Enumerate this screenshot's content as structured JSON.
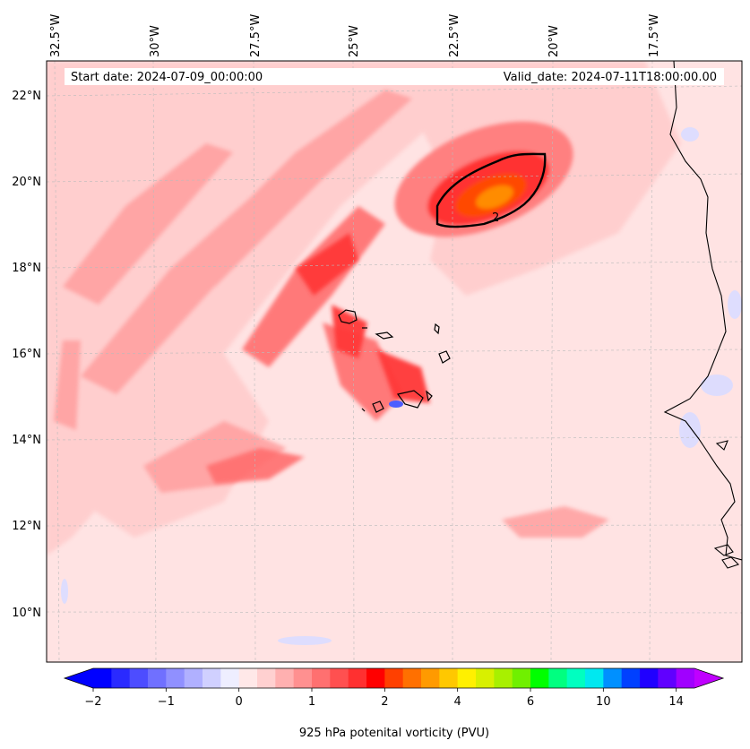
{
  "header": {
    "start_date": "Start date: 2024-07-09_00:00:00",
    "valid_date": "Valid_date: 2024-07-11T18:00:00.00"
  },
  "axes": {
    "longitude_labels": [
      "32.5°W",
      "30°W",
      "27.5°W",
      "25°W",
      "22.5°W",
      "20°W",
      "17.5°W"
    ],
    "latitude_labels": [
      "22°N",
      "20°N",
      "18°N",
      "16°N",
      "14°N",
      "12°N",
      "10°N"
    ]
  },
  "contour": {
    "label": "2"
  },
  "colorbar": {
    "title": "925 hPa potenital vorticity (PVU)",
    "tick_labels": [
      "−2",
      "−1",
      "0",
      "1",
      "2",
      "4",
      "6",
      "10",
      "14"
    ],
    "colors": [
      "#0000ff",
      "#2a2aff",
      "#4d4dff",
      "#7070ff",
      "#9090ff",
      "#b0b0ff",
      "#d0d0ff",
      "#eeeeff",
      "#ffe8e8",
      "#ffd0d0",
      "#ffb0b0",
      "#ff9090",
      "#ff7070",
      "#ff5050",
      "#ff3030",
      "#ff0000",
      "#ff4000",
      "#ff7000",
      "#ff9a00",
      "#ffc800",
      "#fff000",
      "#d8f000",
      "#a8f000",
      "#70f000",
      "#00ff00",
      "#00ff80",
      "#00ffc0",
      "#00e8f0",
      "#0090ff",
      "#0040ff",
      "#2000ff",
      "#6000ff",
      "#a000ff"
    ],
    "under_color": "#0000ff",
    "over_color": "#c000ff"
  },
  "colors": {
    "background_field": "#ffe8e8",
    "coastline": "#000000"
  }
}
